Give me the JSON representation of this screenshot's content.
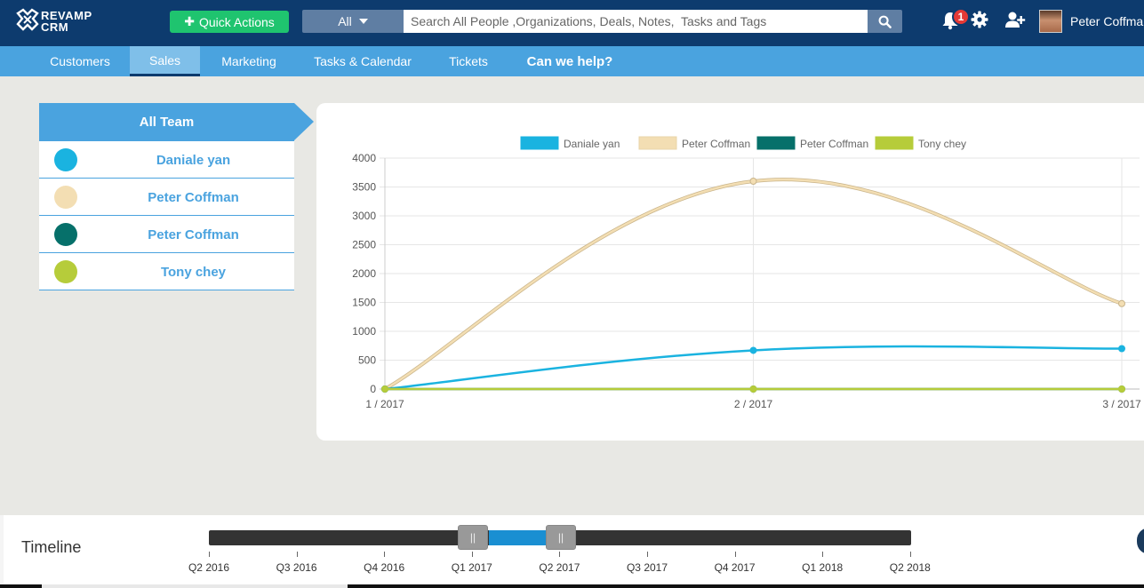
{
  "app": {
    "logo_line1": "REVAMP",
    "logo_line2": "CRM"
  },
  "header": {
    "quick_actions_label": "Quick Actions",
    "search_scope": "All",
    "search_placeholder": "Search All People ,Organizations, Deals, Notes,  Tasks and Tags",
    "notification_count": "1",
    "user_name": "Peter Coffman"
  },
  "nav": {
    "items": [
      {
        "label": "Customers"
      },
      {
        "label": "Sales"
      },
      {
        "label": "Marketing"
      },
      {
        "label": "Tasks & Calendar"
      },
      {
        "label": "Tickets"
      },
      {
        "label": "Can we help?"
      }
    ],
    "active": "Sales"
  },
  "team": {
    "header": "All Team",
    "members": [
      {
        "name": "Daniale yan",
        "color": "#1ab3e0"
      },
      {
        "name": "Peter Coffman",
        "color": "#f3deb3"
      },
      {
        "name": "Peter Coffman",
        "color": "#06706a"
      },
      {
        "name": "Tony chey",
        "color": "#b6cc3a"
      }
    ]
  },
  "chart_data": {
    "type": "line",
    "categories": [
      "1 / 2017",
      "2 / 2017",
      "3 / 2017"
    ],
    "series": [
      {
        "name": "Daniale yan",
        "color": "#1ab3e0",
        "values": [
          0,
          670,
          700
        ]
      },
      {
        "name": "Peter Coffman",
        "color": "#f3deb3",
        "values": [
          0,
          3600,
          1480
        ]
      },
      {
        "name": "Peter Coffman",
        "color": "#06706a",
        "values": [
          0,
          0,
          0
        ]
      },
      {
        "name": "Tony chey",
        "color": "#b6cc3a",
        "values": [
          0,
          0,
          0
        ]
      }
    ],
    "ylim": [
      0,
      4000
    ],
    "yticks": [
      "0",
      "500",
      "1000",
      "1500",
      "2000",
      "2500",
      "3000",
      "3500",
      "4000"
    ],
    "legend_position": "top",
    "grid": true
  },
  "timeline": {
    "label": "Timeline",
    "ticks": [
      "Q2 2016",
      "Q3 2016",
      "Q4 2016",
      "Q1 2017",
      "Q2 2017",
      "Q3 2017",
      "Q4 2017",
      "Q1 2018",
      "Q2 2018"
    ],
    "range_start": "Q1 2017",
    "range_end": "Q2 2017",
    "handle_glyph": "||"
  }
}
